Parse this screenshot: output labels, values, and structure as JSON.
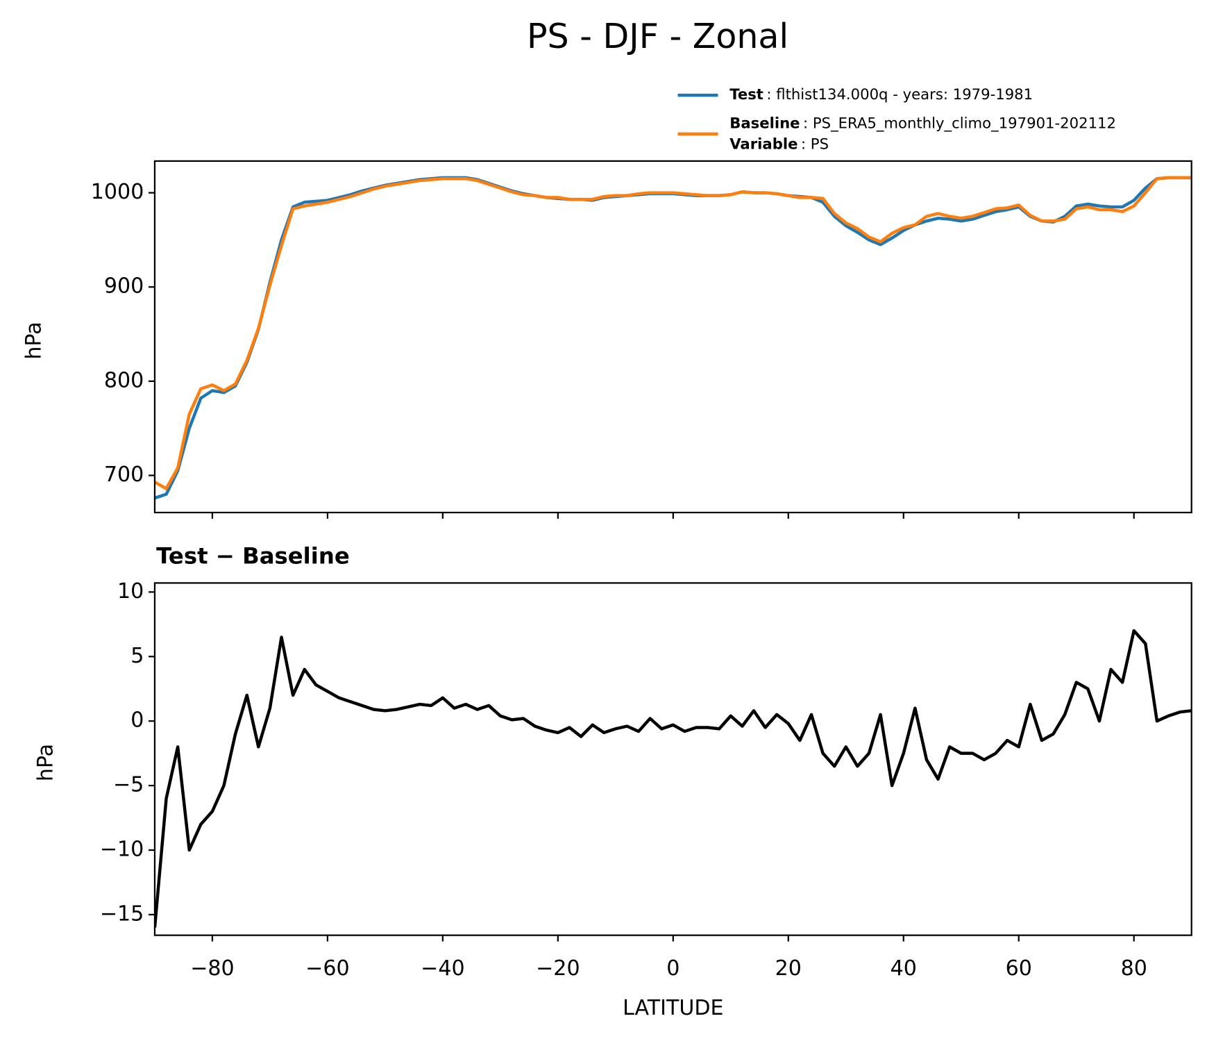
{
  "chart_data": [
    {
      "type": "line",
      "title": "PS - DJF - Zonal",
      "ylabel": "hPa",
      "x": [
        -90,
        -88,
        -86,
        -84,
        -82,
        -80,
        -78,
        -76,
        -74,
        -72,
        -70,
        -68,
        -66,
        -64,
        -62,
        -60,
        -58,
        -56,
        -54,
        -52,
        -50,
        -48,
        -46,
        -44,
        -42,
        -40,
        -38,
        -36,
        -34,
        -32,
        -30,
        -28,
        -26,
        -24,
        -22,
        -20,
        -18,
        -16,
        -14,
        -12,
        -10,
        -8,
        -6,
        -4,
        -2,
        0,
        2,
        4,
        6,
        8,
        10,
        12,
        14,
        16,
        18,
        20,
        22,
        24,
        26,
        28,
        30,
        32,
        34,
        36,
        38,
        40,
        42,
        44,
        46,
        48,
        50,
        52,
        54,
        56,
        58,
        60,
        62,
        64,
        66,
        68,
        70,
        72,
        74,
        76,
        78,
        80,
        82,
        84,
        86,
        88,
        90
      ],
      "series": [
        {
          "name": "Test",
          "description": ": flthist134.000q - years: 1979-1981",
          "color": "#1f77b4",
          "values": [
            676,
            680,
            705,
            750,
            782,
            790,
            788,
            795,
            820,
            855,
            905,
            950,
            985,
            990,
            991,
            992,
            995,
            998,
            1002,
            1005,
            1008,
            1010,
            1012,
            1014,
            1015,
            1016,
            1016,
            1016,
            1014,
            1010,
            1006,
            1002,
            999,
            997,
            995,
            994,
            993,
            993,
            992,
            995,
            996,
            997,
            998,
            999,
            999,
            999,
            998,
            997,
            997,
            997,
            998,
            1001,
            1000,
            1000,
            999,
            997,
            996,
            995,
            990,
            975,
            965,
            958,
            950,
            945,
            952,
            960,
            966,
            970,
            973,
            972,
            970,
            972,
            976,
            980,
            982,
            985,
            975,
            970,
            969,
            975,
            986,
            988,
            986,
            985,
            985,
            992,
            1005,
            1015,
            1016,
            1016,
            1016
          ]
        },
        {
          "name": "Baseline",
          "description": ": PS_ERA5_monthly_climo_197901-202112",
          "color": "#ff7f0e",
          "values": [
            693,
            686,
            708,
            765,
            792,
            796,
            790,
            797,
            822,
            856,
            902,
            944,
            983,
            986,
            988,
            990,
            993,
            996,
            1000,
            1004,
            1007,
            1009,
            1011,
            1013,
            1014,
            1015,
            1015,
            1015,
            1013,
            1009,
            1005,
            1001,
            998,
            997,
            995,
            995,
            993,
            993,
            993,
            996,
            997,
            997,
            999,
            1000,
            1000,
            1000,
            999,
            998,
            997,
            997,
            998,
            1001,
            1000,
            1000,
            999,
            997,
            995,
            995,
            994,
            978,
            968,
            962,
            953,
            948,
            957,
            963,
            966,
            975,
            978,
            975,
            973,
            975,
            979,
            983,
            984,
            987,
            976,
            970,
            970,
            972,
            983,
            985,
            982,
            982,
            980,
            986,
            1000,
            1015,
            1016,
            1016,
            1016
          ]
        }
      ],
      "legend_extra": {
        "label": "Variable",
        "text": ": PS"
      },
      "xlim": [
        -90,
        90
      ],
      "xticks": [
        -80,
        -60,
        -40,
        -20,
        0,
        20,
        40,
        60,
        80
      ],
      "ylim": [
        660.6,
        1033.7
      ],
      "yticks": [
        700,
        800,
        900,
        1000
      ]
    },
    {
      "type": "line",
      "title": "Test − Baseline",
      "xlabel": "LATITUDE",
      "ylabel": "hPa",
      "x": [
        -90,
        -88,
        -86,
        -84,
        -82,
        -80,
        -78,
        -76,
        -74,
        -72,
        -70,
        -68,
        -66,
        -64,
        -62,
        -60,
        -58,
        -56,
        -54,
        -52,
        -50,
        -48,
        -46,
        -44,
        -42,
        -40,
        -38,
        -36,
        -34,
        -32,
        -30,
        -28,
        -26,
        -24,
        -22,
        -20,
        -18,
        -16,
        -14,
        -12,
        -10,
        -8,
        -6,
        -4,
        -2,
        0,
        2,
        4,
        6,
        8,
        10,
        12,
        14,
        16,
        18,
        20,
        22,
        24,
        26,
        28,
        30,
        32,
        34,
        36,
        38,
        40,
        42,
        44,
        46,
        48,
        50,
        52,
        54,
        56,
        58,
        60,
        62,
        64,
        66,
        68,
        70,
        72,
        74,
        76,
        78,
        80,
        82,
        84,
        86,
        88,
        90
      ],
      "series": [
        {
          "color": "#000000",
          "values": [
            -16,
            -6,
            -2,
            -10,
            -8,
            -7,
            -5,
            -1,
            2,
            -2,
            1,
            6.5,
            2,
            4,
            2.8,
            2.3,
            1.8,
            1.5,
            1.2,
            0.9,
            0.8,
            0.9,
            1.1,
            1.3,
            1.2,
            1.8,
            1.0,
            1.3,
            0.9,
            1.2,
            0.4,
            0.1,
            0.2,
            -0.4,
            -0.7,
            -0.9,
            -0.5,
            -1.2,
            -0.3,
            -0.9,
            -0.6,
            -0.4,
            -0.8,
            0.2,
            -0.6,
            -0.3,
            -0.8,
            -0.5,
            -0.5,
            -0.6,
            0.4,
            -0.4,
            0.8,
            -0.5,
            0.5,
            -0.2,
            -1.5,
            0.5,
            -2.5,
            -3.5,
            -2,
            -3.5,
            -2.5,
            0.5,
            -5,
            -2.5,
            1,
            -3,
            -4.5,
            -2,
            -2.5,
            -2.5,
            -3,
            -2.5,
            -1.5,
            -2,
            1.3,
            -1.5,
            -1,
            0.5,
            3,
            2.5,
            0,
            4,
            3,
            7,
            6,
            0,
            0.4,
            0.7,
            0.8
          ]
        }
      ],
      "xlim": [
        -90,
        90
      ],
      "xticks": [
        {
          "value": -80,
          "label": "−80"
        },
        {
          "value": -60,
          "label": "−60"
        },
        {
          "value": -40,
          "label": "−40"
        },
        {
          "value": -20,
          "label": "−20"
        },
        0,
        20,
        40,
        60,
        80
      ],
      "ylim": [
        -16.6,
        10.7
      ],
      "yticks": [
        {
          "value": -15,
          "label": "−15"
        },
        {
          "value": -10,
          "label": "−10"
        },
        {
          "value": -5,
          "label": "−5"
        },
        0,
        5,
        10
      ]
    }
  ]
}
